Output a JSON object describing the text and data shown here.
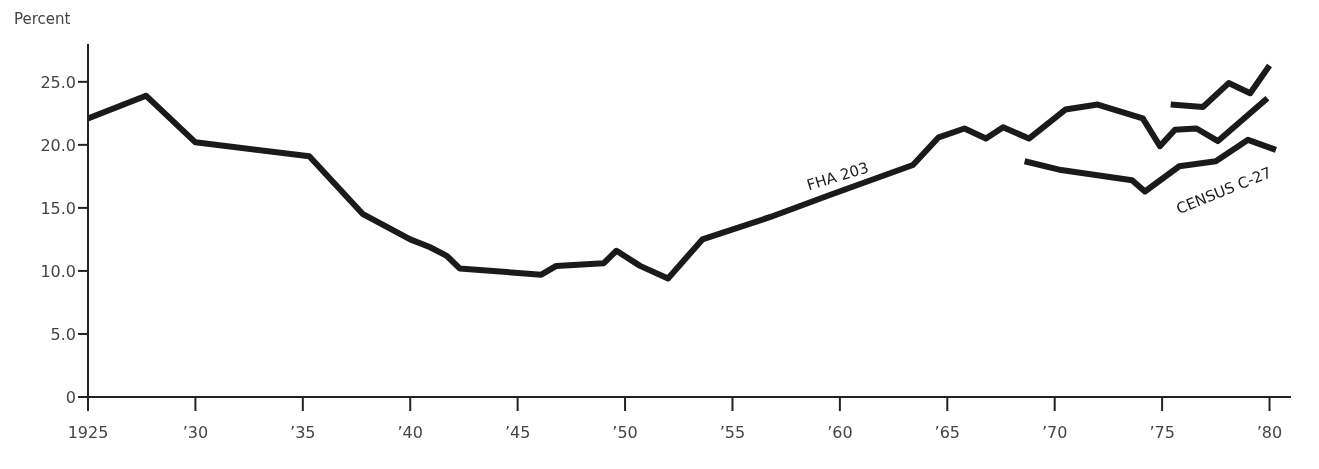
{
  "chart_data": {
    "type": "line",
    "ylabel": "Percent",
    "xlim": [
      1925,
      1981
    ],
    "ylim": [
      0,
      28
    ],
    "xticks": [
      1925,
      {
        "value": 1930,
        "label": "’30"
      },
      {
        "value": 1935,
        "label": "’35"
      },
      {
        "value": 1940,
        "label": "’40"
      },
      {
        "value": 1945,
        "label": "’45"
      },
      {
        "value": 1950,
        "label": "’50"
      },
      {
        "value": 1955,
        "label": "’55"
      },
      {
        "value": 1960,
        "label": "’60"
      },
      {
        "value": 1965,
        "label": "’65"
      },
      {
        "value": 1970,
        "label": "’70"
      },
      {
        "value": 1975,
        "label": "’75"
      },
      {
        "value": 1980,
        "label": "’80"
      }
    ],
    "yticks": [
      0,
      {
        "value": 5,
        "label": "5.0"
      },
      {
        "value": 10,
        "label": "10.0"
      },
      {
        "value": 15,
        "label": "15.0"
      },
      {
        "value": 20,
        "label": "20.0"
      },
      {
        "value": 25,
        "label": "25.0"
      }
    ],
    "grid": false,
    "legend": false,
    "marker": "none",
    "line_style": "solid",
    "series": [
      {
        "name": "FHA 203",
        "color": "#1a1a1a",
        "x": [
          1925,
          1927.7,
          1930,
          1935.3,
          1937.8,
          1940,
          1940.9,
          1941.7,
          1942.3,
          1946.1,
          1946.8,
          1949,
          1949.6,
          1950.7,
          1952,
          1953.6,
          1956.8,
          1959.5,
          1963.4,
          1964.6,
          1965.8,
          1966.8,
          1967.6,
          1968.8,
          1970.5,
          1972,
          1974.1,
          1974.9,
          1975.6,
          1976.6,
          1977.6,
          1979.9
        ],
        "values": [
          22.1,
          23.9,
          20.2,
          19.1,
          14.5,
          12.5,
          11.9,
          11.2,
          10.2,
          9.7,
          10.4,
          10.6,
          11.6,
          10.4,
          9.4,
          12.5,
          14.3,
          16.0,
          18.4,
          20.6,
          21.3,
          20.5,
          21.4,
          20.5,
          22.8,
          23.2,
          22.1,
          19.9,
          21.2,
          21.3,
          20.3,
          23.7
        ]
      },
      {
        "color": "#1a1a1a",
        "x": [
          1975.4,
          1976.9,
          1978.1,
          1979.1,
          1980
        ],
        "values": [
          23.2,
          23.0,
          24.9,
          24.1,
          26.3
        ]
      },
      {
        "name": "CENSUS C-27",
        "color": "#1a1a1a",
        "x": [
          1968.6,
          1970.3,
          1973.6,
          1974.2,
          1975.8,
          1977.5,
          1979,
          1980.3
        ],
        "values": [
          18.7,
          18.0,
          17.2,
          16.3,
          18.3,
          18.7,
          20.4,
          19.6
        ]
      }
    ]
  }
}
